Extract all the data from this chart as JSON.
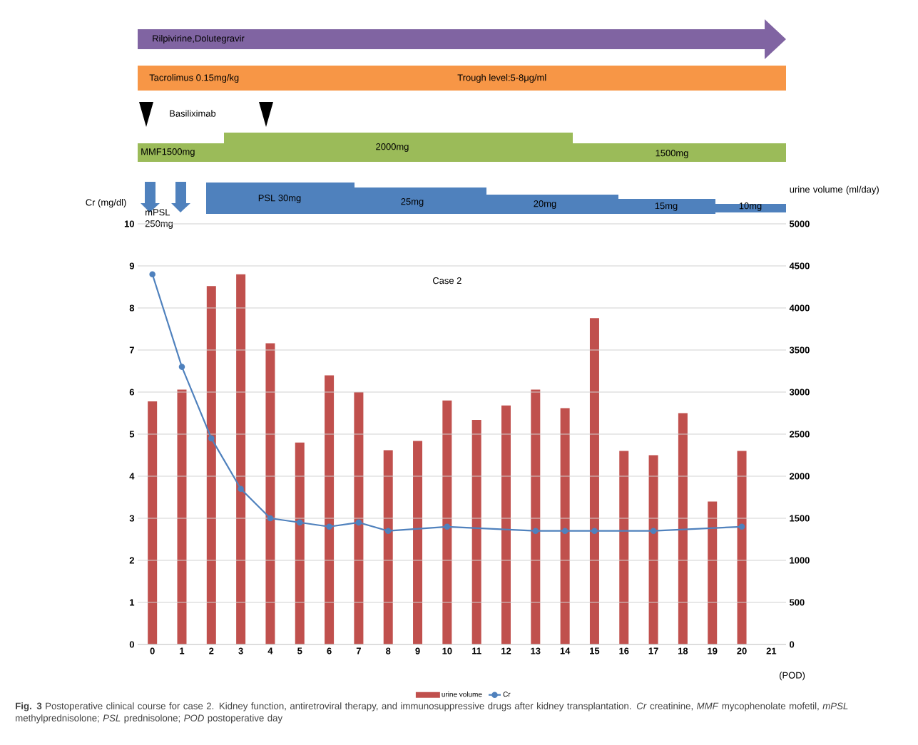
{
  "chart_data": {
    "type": "bar",
    "title": "Case 2",
    "categories": [
      "0",
      "1",
      "2",
      "3",
      "4",
      "5",
      "6",
      "7",
      "8",
      "9",
      "10",
      "11",
      "12",
      "13",
      "14",
      "15",
      "16",
      "17",
      "18",
      "19",
      "20",
      "21"
    ],
    "series": [
      {
        "name": "urine volume",
        "axis": "y2",
        "color": "#c0504d",
        "values": [
          2890,
          3030,
          4260,
          4400,
          3580,
          2400,
          3200,
          3000,
          2310,
          2420,
          2900,
          2670,
          2840,
          3030,
          2810,
          3880,
          2300,
          2250,
          2750,
          1700,
          2300,
          null
        ]
      },
      {
        "name": "Cr",
        "type": "line",
        "axis": "y",
        "color": "#4f81bd",
        "marker": "circle",
        "values": [
          8.8,
          6.6,
          4.9,
          3.7,
          3.0,
          2.9,
          2.8,
          2.9,
          2.7,
          null,
          2.8,
          null,
          null,
          2.7,
          2.7,
          2.7,
          null,
          2.7,
          null,
          null,
          2.8,
          null
        ]
      }
    ],
    "ylabel": "Cr (mg/dl)",
    "y2label": "urine volume (ml/day)",
    "xlabel": "(POD)",
    "ylim": [
      0,
      10
    ],
    "yticks": [
      0,
      1,
      2,
      3,
      4,
      5,
      6,
      7,
      8,
      9,
      10
    ],
    "y2lim": [
      0,
      5000
    ],
    "y2ticks": [
      0,
      500,
      1000,
      1500,
      2000,
      2500,
      3000,
      3500,
      4000,
      4500,
      5000
    ],
    "grid": "y",
    "legend": "bottom",
    "annotations": [
      "Rilpivirine,Dolutegravir",
      "Tacrolimus 0.15mg/kg",
      "Trough level:5-8μg/ml",
      "Basiliximab",
      "MMF1500mg",
      "2000mg",
      "1500mg",
      "mPSL 250mg",
      "PSL 30mg",
      "25mg",
      "20mg",
      "15mg",
      "10mg",
      "**Fig. 3** Postoperative clinical course for case 2. Kidney function, antiretroviral therapy, and immunosuppressive drugs after kidney transplantation. *Cr* creatinine, *MMF* mycophenolate mofetil, *mPSL* methylprednisolone; *PSL* prednisolone; *POD* postoperative day"
    ]
  }
}
